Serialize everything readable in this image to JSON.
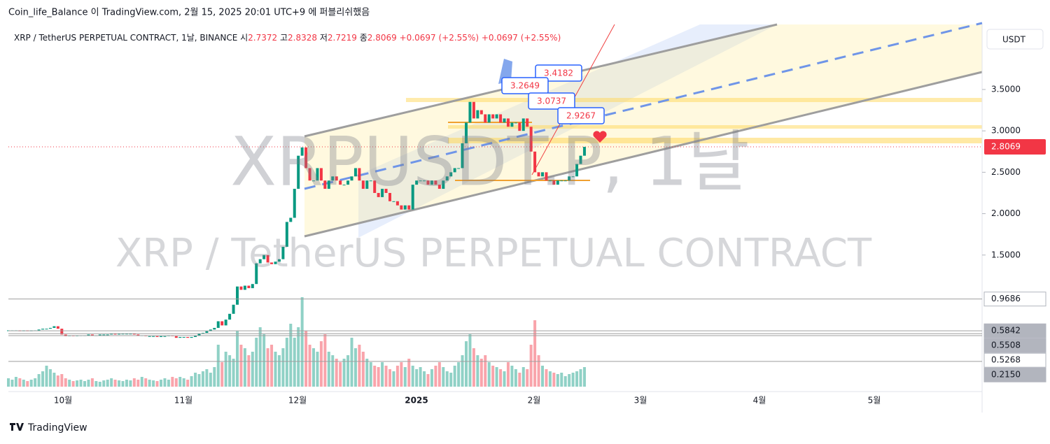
{
  "header": "Coin_life_Balance 이 TradingView.com, 2월 15, 2025 20:01 UTC+9 에 퍼블리쉬했음",
  "legend": {
    "symbol": "XRP / TetherUS PERPETUAL CONTRACT, 1날, BINANCE",
    "ohlc": [
      {
        "label": "시",
        "value": "2.7372"
      },
      {
        "label": "고",
        "value": "2.8328"
      },
      {
        "label": "저",
        "value": "2.7219"
      },
      {
        "label": "종",
        "value": "2.8069"
      }
    ],
    "changes": [
      "+0.0697 (+2.55%)",
      "+0.0697 (+2.55%)"
    ]
  },
  "watermark": {
    "symbol": "XRPUSDT.P, 1날",
    "description": "XRP / TetherUS PERPETUAL CONTRACT"
  },
  "annotations": [
    "3.4182",
    "3.2649",
    "3.0737",
    "2.9267"
  ],
  "time_axis": [
    "10월",
    "11월",
    "12월",
    "2025",
    "2월",
    "3월",
    "4월",
    "5월"
  ],
  "footer": "TradingView",
  "chart": {
    "type": "candlestick",
    "unit": "USDT",
    "ylim": [
      -0.09,
      4.26
    ],
    "yticks": [
      {
        "value": 3.5,
        "label": "3.5000"
      },
      {
        "value": 3.0,
        "label": "3.0000"
      },
      {
        "value": 2.5,
        "label": "2.5000"
      },
      {
        "value": 2.0,
        "label": "2.0000"
      },
      {
        "value": 1.5,
        "label": "1.5000"
      }
    ],
    "levels": [
      {
        "value": 0.9686,
        "label": "0.9686"
      },
      {
        "value": 0.5842,
        "label": "0.5842"
      },
      {
        "value": 0.5508,
        "label": "0.5508"
      },
      {
        "value": 0.5268,
        "label": "0.5268"
      },
      {
        "value": 0.215,
        "label": "0.2150"
      }
    ],
    "last_price": {
      "value": 2.8069,
      "label": "2.8069"
    },
    "closes": [
      0.59,
      0.59,
      0.59,
      0.58,
      0.59,
      0.58,
      0.59,
      0.59,
      0.6,
      0.61,
      0.61,
      0.62,
      0.64,
      0.61,
      0.54,
      0.52,
      0.53,
      0.52,
      0.53,
      0.53,
      0.53,
      0.54,
      0.53,
      0.53,
      0.54,
      0.54,
      0.54,
      0.55,
      0.54,
      0.55,
      0.55,
      0.55,
      0.55,
      0.54,
      0.53,
      0.53,
      0.52,
      0.52,
      0.52,
      0.51,
      0.52,
      0.52,
      0.53,
      0.52,
      0.5,
      0.51,
      0.51,
      0.5,
      0.51,
      0.53,
      0.55,
      0.56,
      0.58,
      0.6,
      0.62,
      0.7,
      0.65,
      0.72,
      0.79,
      0.9,
      1.12,
      1.08,
      1.13,
      1.1,
      1.15,
      1.4,
      1.45,
      1.5,
      1.41,
      1.39,
      1.42,
      1.45,
      1.6,
      1.9,
      1.95,
      2.3,
      2.7,
      2.8,
      2.55,
      2.4,
      2.4,
      2.55,
      2.4,
      2.3,
      2.4,
      2.45,
      2.4,
      2.35,
      2.35,
      2.4,
      2.45,
      2.55,
      2.4,
      2.3,
      2.4,
      2.4,
      2.25,
      2.2,
      2.3,
      2.25,
      2.15,
      2.15,
      2.1,
      2.05,
      2.1,
      2.05,
      2.35,
      2.4,
      2.4,
      2.4,
      2.35,
      2.4,
      2.35,
      2.3,
      2.4,
      2.45,
      2.5,
      2.55,
      2.55,
      2.85,
      3.1,
      3.35,
      3.15,
      3.25,
      3.2,
      3.1,
      3.2,
      3.15,
      3.2,
      3.1,
      3.15,
      3.05,
      3.1,
      3.1,
      3.0,
      3.15,
      3.05,
      2.75,
      2.5,
      2.45,
      2.5,
      2.4,
      2.4,
      2.35,
      2.4,
      2.4,
      2.4,
      2.45,
      2.45,
      2.6,
      2.7,
      2.8069
    ],
    "volumes": [
      12,
      10,
      14,
      12,
      10,
      8,
      10,
      12,
      18,
      22,
      30,
      25,
      20,
      16,
      18,
      12,
      10,
      8,
      9,
      10,
      8,
      10,
      12,
      8,
      7,
      9,
      10,
      12,
      10,
      9,
      8,
      10,
      9,
      12,
      10,
      14,
      12,
      10,
      9,
      8,
      10,
      12,
      10,
      14,
      12,
      14,
      12,
      10,
      15,
      20,
      18,
      22,
      25,
      20,
      28,
      60,
      35,
      50,
      45,
      40,
      80,
      60,
      55,
      45,
      50,
      70,
      85,
      75,
      55,
      60,
      50,
      45,
      55,
      70,
      90,
      70,
      85,
      128,
      80,
      60,
      55,
      50,
      65,
      75,
      50,
      45,
      40,
      35,
      40,
      45,
      70,
      55,
      60,
      50,
      40,
      35,
      30,
      28,
      35,
      30,
      25,
      22,
      30,
      35,
      28,
      40,
      30,
      25,
      28,
      22,
      18,
      25,
      30,
      35,
      28,
      22,
      20,
      30,
      35,
      45,
      65,
      75,
      55,
      45,
      40,
      45,
      35,
      30,
      28,
      25,
      22,
      35,
      30,
      25,
      20,
      28,
      25,
      60,
      95,
      45,
      30,
      25,
      22,
      20,
      18,
      20,
      15,
      18,
      20,
      22,
      25,
      28
    ]
  }
}
